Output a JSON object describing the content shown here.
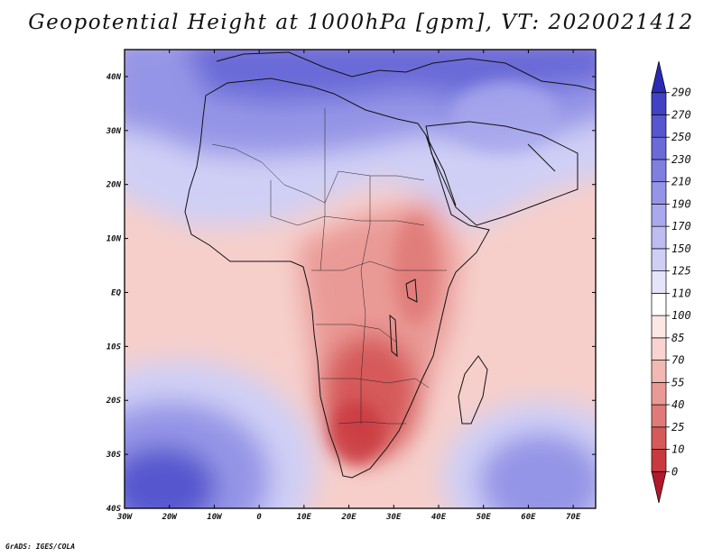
{
  "title": "Geopotential Height at 1000hPa [gpm], VT: 2020021412",
  "footer": "GrADS: IGES/COLA",
  "map": {
    "variable": "Geopotential Height",
    "level": "1000hPa",
    "units": "gpm",
    "valid_time": "2020021412",
    "lon_range": [
      -30,
      75
    ],
    "lat_range": [
      -40,
      45
    ],
    "lon_ticks": [
      {
        "value": -30,
        "label": "30W"
      },
      {
        "value": -20,
        "label": "20W"
      },
      {
        "value": -10,
        "label": "10W"
      },
      {
        "value": 0,
        "label": "0"
      },
      {
        "value": 10,
        "label": "10E"
      },
      {
        "value": 20,
        "label": "20E"
      },
      {
        "value": 30,
        "label": "30E"
      },
      {
        "value": 40,
        "label": "40E"
      },
      {
        "value": 50,
        "label": "50E"
      },
      {
        "value": 60,
        "label": "60E"
      },
      {
        "value": 70,
        "label": "70E"
      }
    ],
    "lat_ticks": [
      {
        "value": 40,
        "label": "40N"
      },
      {
        "value": 30,
        "label": "30N"
      },
      {
        "value": 20,
        "label": "20N"
      },
      {
        "value": 10,
        "label": "10N"
      },
      {
        "value": 0,
        "label": "EQ"
      },
      {
        "value": -10,
        "label": "10S"
      },
      {
        "value": -20,
        "label": "20S"
      },
      {
        "value": -30,
        "label": "30S"
      },
      {
        "value": -40,
        "label": "40S"
      }
    ]
  },
  "colorbar": {
    "levels": [
      "0",
      "10",
      "25",
      "40",
      "55",
      "70",
      "85",
      "100",
      "110",
      "125",
      "150",
      "170",
      "190",
      "210",
      "230",
      "250",
      "270",
      "290"
    ],
    "colors": [
      "#b2182b",
      "#c83a3f",
      "#d65a5a",
      "#e07a78",
      "#ea9a96",
      "#f2b8b3",
      "#f8d3cf",
      "#fbe8e5",
      "#ffffff",
      "#e4e4fb",
      "#cfcff6",
      "#bdbdf2",
      "#a9a9ed",
      "#9595e7",
      "#7f7fe0",
      "#6a6ad8",
      "#5656cf",
      "#4141c4",
      "#2a2ab5"
    ]
  }
}
